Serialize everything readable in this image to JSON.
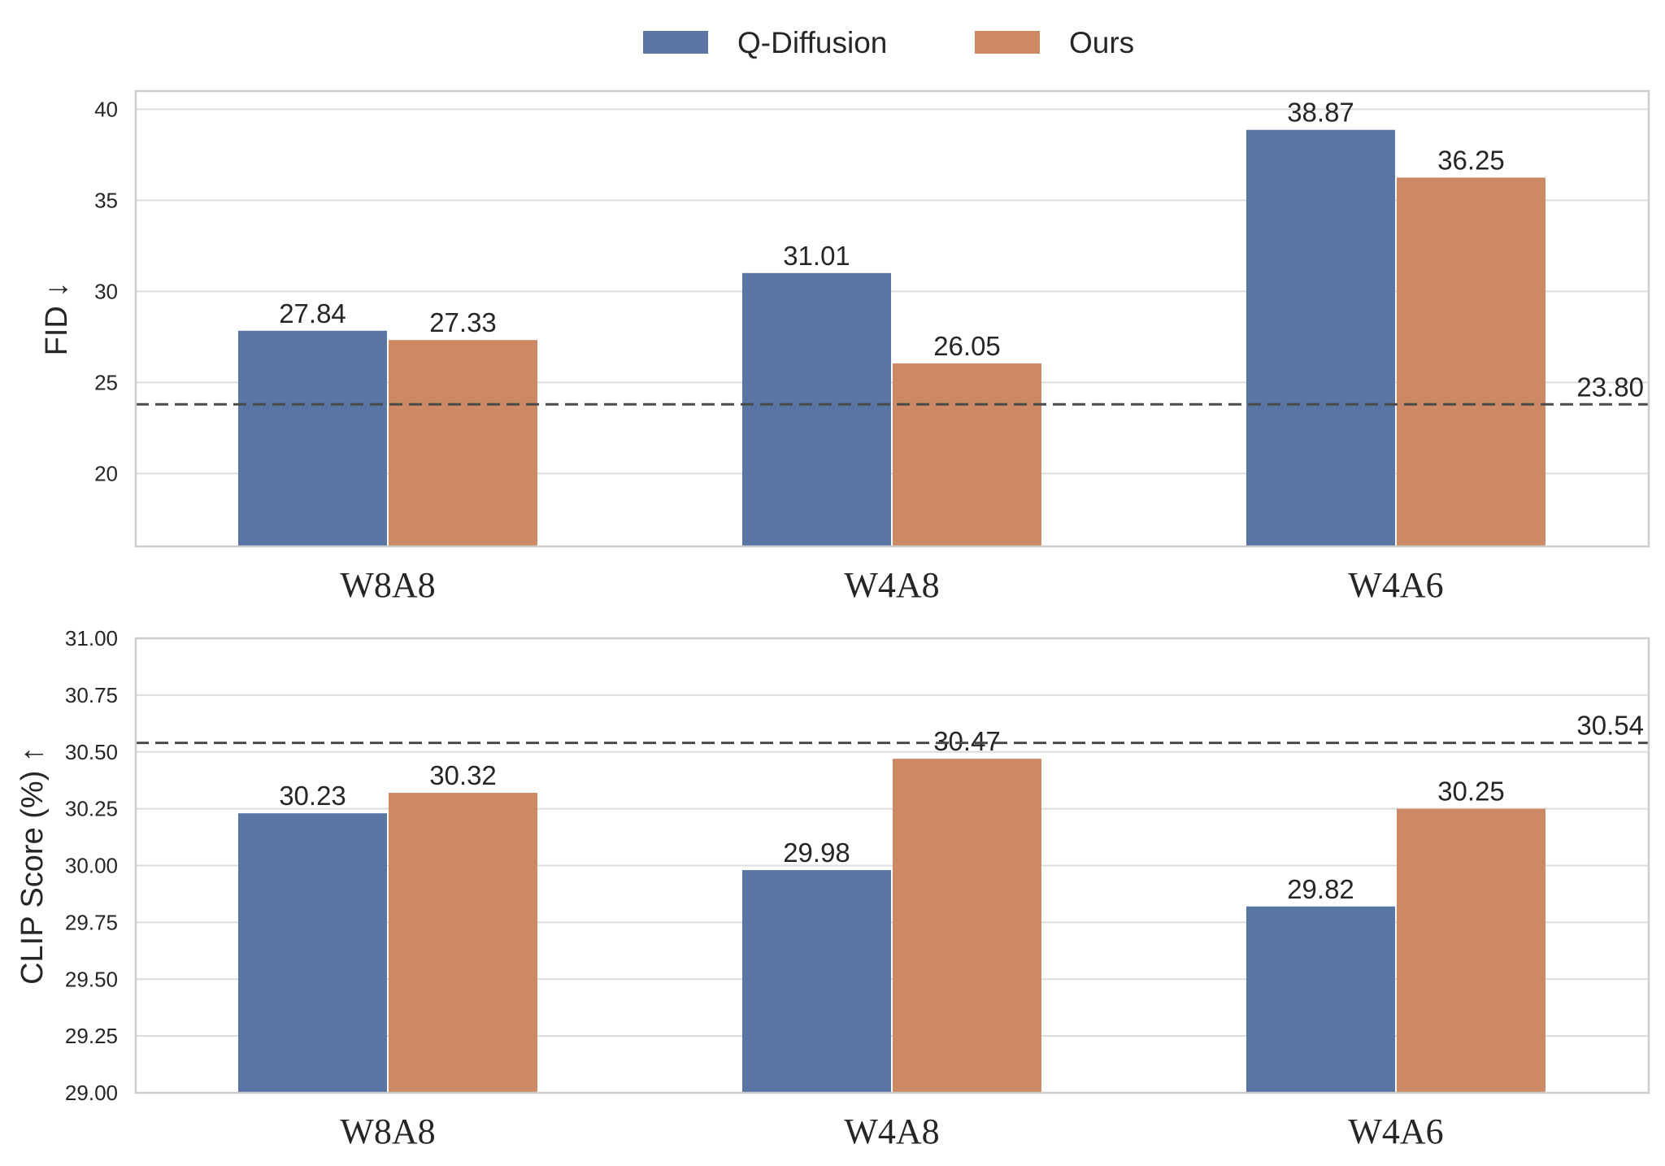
{
  "legend": [
    {
      "name": "Q-Diffusion",
      "color": "#5875a4"
    },
    {
      "name": "Ours",
      "color": "#cc8963"
    }
  ],
  "chart_data": [
    {
      "type": "bar",
      "ylabel": "FID ↓",
      "categories": [
        "W8A8",
        "W4A8",
        "W4A6"
      ],
      "series": [
        {
          "name": "Q-Diffusion",
          "values": [
            27.84,
            31.01,
            38.87
          ]
        },
        {
          "name": "Ours",
          "values": [
            27.33,
            26.05,
            36.25
          ]
        }
      ],
      "value_labels": [
        [
          "27.84",
          "31.01",
          "38.87"
        ],
        [
          "27.33",
          "26.05",
          "36.25"
        ]
      ],
      "reference_line": {
        "value": 23.8,
        "label": "23.80",
        "style": "dashed"
      },
      "ylim": [
        16,
        41
      ],
      "yticks": [
        20,
        25,
        30,
        35,
        40
      ],
      "ytick_labels": [
        "20",
        "25",
        "30",
        "35",
        "40"
      ],
      "grid": true
    },
    {
      "type": "bar",
      "ylabel": "CLIP Score (%) ↑",
      "categories": [
        "W8A8",
        "W4A8",
        "W4A6"
      ],
      "series": [
        {
          "name": "Q-Diffusion",
          "values": [
            30.23,
            29.98,
            29.82
          ]
        },
        {
          "name": "Ours",
          "values": [
            30.32,
            30.47,
            30.25
          ]
        }
      ],
      "value_labels": [
        [
          "30.23",
          "29.98",
          "29.82"
        ],
        [
          "30.32",
          "30.47",
          "30.25"
        ]
      ],
      "reference_line": {
        "value": 30.54,
        "label": "30.54",
        "style": "dashed"
      },
      "ylim": [
        29.0,
        31.0
      ],
      "yticks": [
        29.0,
        29.25,
        29.5,
        29.75,
        30.0,
        30.25,
        30.5,
        30.75,
        31.0
      ],
      "ytick_labels": [
        "29.00",
        "29.25",
        "29.50",
        "29.75",
        "30.00",
        "30.25",
        "30.50",
        "30.75",
        "31.00"
      ],
      "grid": true
    }
  ]
}
